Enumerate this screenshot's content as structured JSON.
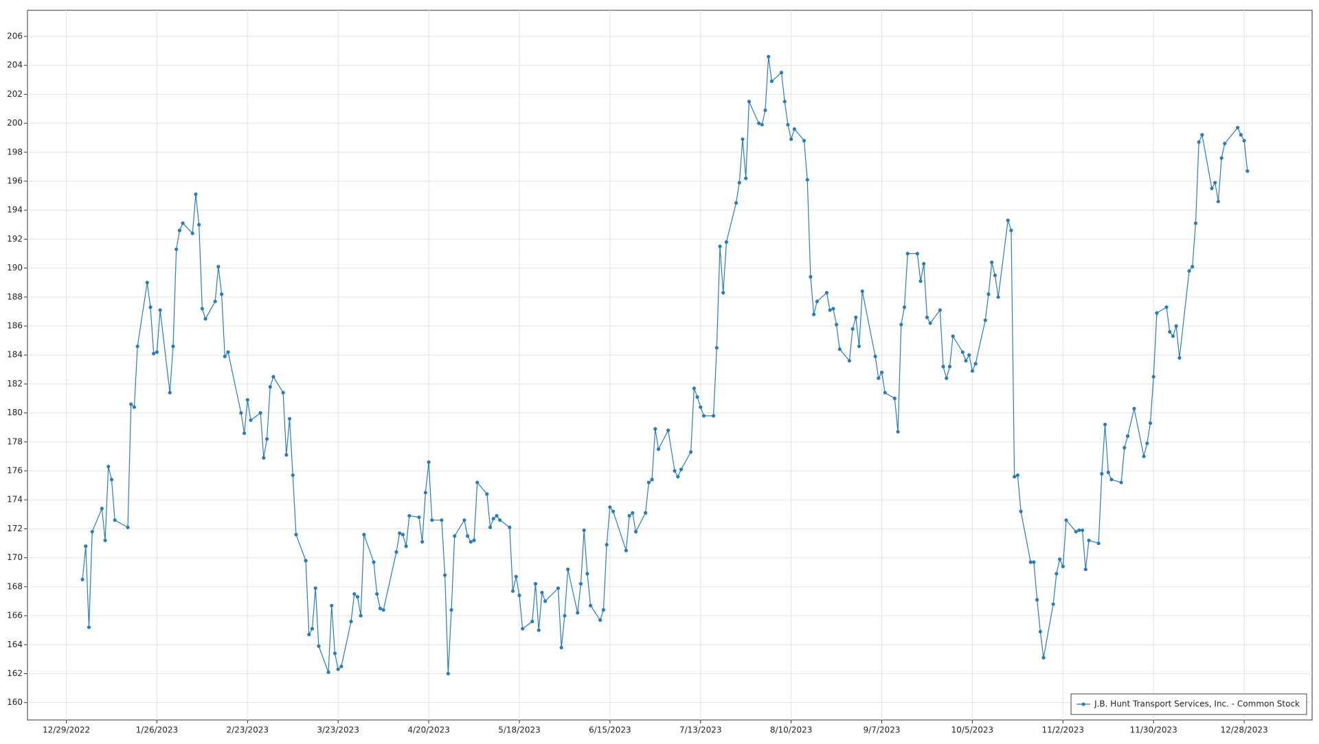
{
  "chart_data": {
    "type": "line",
    "x": [
      "1/3/2023",
      "1/4/2023",
      "1/5/2023",
      "1/6/2023",
      "1/9/2023",
      "1/10/2023",
      "1/11/2023",
      "1/12/2023",
      "1/13/2023",
      "1/17/2023",
      "1/18/2023",
      "1/19/2023",
      "1/20/2023",
      "1/23/2023",
      "1/24/2023",
      "1/25/2023",
      "1/26/2023",
      "1/27/2023",
      "1/30/2023",
      "1/31/2023",
      "2/1/2023",
      "2/2/2023",
      "2/3/2023",
      "2/6/2023",
      "2/7/2023",
      "2/8/2023",
      "2/9/2023",
      "2/10/2023",
      "2/13/2023",
      "2/14/2023",
      "2/15/2023",
      "2/16/2023",
      "2/17/2023",
      "2/21/2023",
      "2/22/2023",
      "2/23/2023",
      "2/24/2023",
      "2/27/2023",
      "2/28/2023",
      "3/1/2023",
      "3/2/2023",
      "3/3/2023",
      "3/6/2023",
      "3/7/2023",
      "3/8/2023",
      "3/9/2023",
      "3/10/2023",
      "3/13/2023",
      "3/14/2023",
      "3/15/2023",
      "3/16/2023",
      "3/17/2023",
      "3/20/2023",
      "3/21/2023",
      "3/22/2023",
      "3/23/2023",
      "3/24/2023",
      "3/27/2023",
      "3/28/2023",
      "3/29/2023",
      "3/30/2023",
      "3/31/2023",
      "4/3/2023",
      "4/4/2023",
      "4/5/2023",
      "4/6/2023",
      "4/10/2023",
      "4/11/2023",
      "4/12/2023",
      "4/13/2023",
      "4/14/2023",
      "4/17/2023",
      "4/18/2023",
      "4/19/2023",
      "4/20/2023",
      "4/21/2023",
      "4/24/2023",
      "4/25/2023",
      "4/26/2023",
      "4/27/2023",
      "4/28/2023",
      "5/1/2023",
      "5/2/2023",
      "5/3/2023",
      "5/4/2023",
      "5/5/2023",
      "5/8/2023",
      "5/9/2023",
      "5/10/2023",
      "5/11/2023",
      "5/12/2023",
      "5/15/2023",
      "5/16/2023",
      "5/17/2023",
      "5/18/2023",
      "5/19/2023",
      "5/22/2023",
      "5/23/2023",
      "5/24/2023",
      "5/25/2023",
      "5/26/2023",
      "5/30/2023",
      "5/31/2023",
      "6/1/2023",
      "6/2/2023",
      "6/5/2023",
      "6/6/2023",
      "6/7/2023",
      "6/8/2023",
      "6/9/2023",
      "6/12/2023",
      "6/13/2023",
      "6/14/2023",
      "6/15/2023",
      "6/16/2023",
      "6/20/2023",
      "6/21/2023",
      "6/22/2023",
      "6/23/2023",
      "6/26/2023",
      "6/27/2023",
      "6/28/2023",
      "6/29/2023",
      "6/30/2023",
      "7/3/2023",
      "7/5/2023",
      "7/6/2023",
      "7/7/2023",
      "7/10/2023",
      "7/11/2023",
      "7/12/2023",
      "7/13/2023",
      "7/14/2023",
      "7/17/2023",
      "7/18/2023",
      "7/19/2023",
      "7/20/2023",
      "7/21/2023",
      "7/24/2023",
      "7/25/2023",
      "7/26/2023",
      "7/27/2023",
      "7/28/2023",
      "7/31/2023",
      "8/1/2023",
      "8/2/2023",
      "8/3/2023",
      "8/4/2023",
      "8/7/2023",
      "8/8/2023",
      "8/9/2023",
      "8/10/2023",
      "8/11/2023",
      "8/14/2023",
      "8/15/2023",
      "8/16/2023",
      "8/17/2023",
      "8/18/2023",
      "8/21/2023",
      "8/22/2023",
      "8/23/2023",
      "8/24/2023",
      "8/25/2023",
      "8/28/2023",
      "8/29/2023",
      "8/30/2023",
      "8/31/2023",
      "9/1/2023",
      "9/5/2023",
      "9/6/2023",
      "9/7/2023",
      "9/8/2023",
      "9/11/2023",
      "9/12/2023",
      "9/13/2023",
      "9/14/2023",
      "9/15/2023",
      "9/18/2023",
      "9/19/2023",
      "9/20/2023",
      "9/21/2023",
      "9/22/2023",
      "9/25/2023",
      "9/26/2023",
      "9/27/2023",
      "9/28/2023",
      "9/29/2023",
      "10/2/2023",
      "10/3/2023",
      "10/4/2023",
      "10/5/2023",
      "10/6/2023",
      "10/9/2023",
      "10/10/2023",
      "10/11/2023",
      "10/12/2023",
      "10/13/2023",
      "10/16/2023",
      "10/17/2023",
      "10/18/2023",
      "10/19/2023",
      "10/20/2023",
      "10/23/2023",
      "10/24/2023",
      "10/25/2023",
      "10/26/2023",
      "10/27/2023",
      "10/30/2023",
      "10/31/2023",
      "11/1/2023",
      "11/2/2023",
      "11/3/2023",
      "11/6/2023",
      "11/7/2023",
      "11/8/2023",
      "11/9/2023",
      "11/10/2023",
      "11/13/2023",
      "11/14/2023",
      "11/15/2023",
      "11/16/2023",
      "11/17/2023",
      "11/20/2023",
      "11/21/2023",
      "11/22/2023",
      "11/24/2023",
      "11/27/2023",
      "11/28/2023",
      "11/29/2023",
      "11/30/2023",
      "12/1/2023",
      "12/4/2023",
      "12/5/2023",
      "12/6/2023",
      "12/7/2023",
      "12/8/2023",
      "12/11/2023",
      "12/12/2023",
      "12/13/2023",
      "12/14/2023",
      "12/15/2023",
      "12/18/2023",
      "12/19/2023",
      "12/20/2023",
      "12/21/2023",
      "12/22/2023",
      "12/26/2023",
      "12/27/2023",
      "12/28/2023",
      "12/29/2023"
    ],
    "series": [
      {
        "name": "J.B. Hunt Transport Services, Inc. - Common Stock",
        "color": "#2b7bb9",
        "values": [
          168.5,
          170.8,
          165.2,
          171.8,
          173.4,
          171.2,
          176.3,
          175.4,
          172.6,
          172.1,
          180.6,
          180.4,
          184.6,
          189.0,
          187.3,
          184.1,
          184.2,
          187.1,
          181.4,
          184.6,
          191.3,
          192.6,
          193.1,
          192.4,
          195.1,
          193.0,
          187.2,
          186.5,
          187.7,
          190.1,
          188.2,
          183.9,
          184.2,
          180.0,
          178.6,
          180.9,
          179.5,
          180.0,
          176.9,
          178.2,
          181.8,
          182.5,
          181.4,
          177.1,
          179.6,
          175.7,
          171.6,
          169.8,
          164.7,
          165.1,
          167.9,
          163.9,
          162.1,
          166.7,
          163.4,
          162.3,
          162.5,
          165.6,
          167.5,
          167.3,
          166.0,
          171.6,
          169.7,
          167.5,
          166.5,
          166.4,
          170.4,
          171.7,
          171.6,
          170.8,
          172.9,
          172.8,
          171.1,
          174.5,
          176.6,
          172.6,
          172.6,
          168.8,
          162.0,
          166.4,
          171.5,
          172.6,
          171.5,
          171.1,
          171.2,
          175.2,
          174.4,
          172.1,
          172.7,
          172.9,
          172.6,
          172.1,
          167.7,
          168.7,
          167.4,
          165.1,
          165.6,
          168.2,
          165.0,
          167.6,
          167.0,
          167.9,
          163.8,
          166.0,
          169.2,
          166.2,
          168.2,
          171.9,
          168.9,
          166.7,
          165.7,
          166.4,
          170.9,
          173.5,
          173.2,
          170.5,
          172.9,
          173.1,
          171.8,
          173.1,
          175.2,
          175.4,
          178.9,
          177.5,
          178.8,
          176.0,
          175.6,
          176.1,
          177.3,
          181.7,
          181.1,
          180.4,
          179.8,
          179.8,
          184.5,
          191.5,
          188.3,
          191.8,
          194.5,
          195.9,
          198.9,
          196.2,
          201.5,
          200.0,
          199.9,
          200.9,
          204.6,
          202.9,
          203.5,
          201.5,
          199.9,
          198.9,
          199.6,
          198.8,
          196.1,
          189.4,
          186.8,
          187.7,
          188.3,
          187.1,
          187.2,
          186.1,
          184.4,
          183.6,
          185.8,
          186.6,
          184.6,
          188.4,
          183.9,
          182.4,
          182.8,
          181.4,
          181.0,
          178.7,
          186.1,
          187.3,
          191.0,
          191.0,
          189.1,
          190.3,
          186.6,
          186.2,
          187.1,
          183.2,
          182.4,
          183.2,
          185.3,
          184.2,
          183.6,
          184.0,
          182.9,
          183.4,
          186.4,
          188.2,
          190.4,
          189.5,
          188.0,
          193.3,
          192.6,
          175.6,
          175.7,
          173.2,
          169.7,
          169.7,
          167.1,
          164.9,
          163.1,
          166.8,
          168.9,
          169.9,
          169.4,
          172.6,
          171.8,
          171.9,
          171.9,
          169.2,
          171.2,
          171.0,
          175.8,
          179.2,
          175.9,
          175.4,
          175.2,
          177.6,
          178.4,
          180.3,
          177.0,
          177.9,
          179.3,
          182.5,
          186.9,
          187.3,
          185.6,
          185.3,
          186.0,
          183.8,
          189.8,
          190.1,
          193.1,
          198.7,
          199.2,
          195.5,
          195.9,
          194.6,
          197.6,
          198.6,
          199.7,
          199.2,
          198.8,
          196.7
        ]
      }
    ],
    "xlim": [
      "12/17/2022",
      "1/18/2024"
    ],
    "xticks": [
      "12/29/2022",
      "1/26/2023",
      "2/23/2023",
      "3/23/2023",
      "4/20/2023",
      "5/18/2023",
      "6/15/2023",
      "7/13/2023",
      "8/10/2023",
      "9/7/2023",
      "10/5/2023",
      "11/2/2023",
      "11/30/2023",
      "12/28/2023"
    ],
    "ylim": [
      158.8,
      207.8
    ],
    "yticks": [
      160,
      162,
      164,
      166,
      168,
      170,
      172,
      174,
      176,
      178,
      180,
      182,
      184,
      186,
      188,
      190,
      192,
      194,
      196,
      198,
      200,
      202,
      204,
      206
    ],
    "grid": true,
    "legend": "lower right",
    "markers": true
  }
}
